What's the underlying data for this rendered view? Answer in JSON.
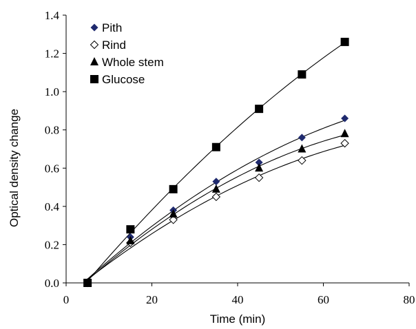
{
  "chart_data": {
    "type": "scatter",
    "xlabel": "Time (min)",
    "ylabel": "Optical density change",
    "xlim": [
      0,
      80
    ],
    "ylim": [
      0,
      1.4
    ],
    "x_ticks": [
      "0",
      "20",
      "40",
      "60",
      "80"
    ],
    "y_ticks": [
      "0.0",
      "0.2",
      "0.4",
      "0.6",
      "0.8",
      "1.0",
      "1.2",
      "1.4"
    ],
    "grid": false,
    "legend_position": "top-left",
    "trendline": "smooth curve fit through each series",
    "series": [
      {
        "name": "Pith",
        "marker": "diamond-filled",
        "color": "#1f2a6e",
        "x": [
          5,
          15,
          25,
          35,
          45,
          55,
          65
        ],
        "y": [
          0.0,
          0.24,
          0.38,
          0.53,
          0.63,
          0.76,
          0.86
        ]
      },
      {
        "name": "Rind",
        "marker": "diamond-open",
        "color": "#000000",
        "x": [
          5,
          15,
          25,
          35,
          45,
          55,
          65
        ],
        "y": [
          0.0,
          0.21,
          0.33,
          0.45,
          0.55,
          0.64,
          0.73
        ]
      },
      {
        "name": "Whole stem",
        "marker": "triangle",
        "color": "#000000",
        "x": [
          5,
          15,
          25,
          35,
          45,
          55,
          65
        ],
        "y": [
          0.0,
          0.22,
          0.36,
          0.49,
          0.6,
          0.7,
          0.78
        ]
      },
      {
        "name": "Glucose",
        "marker": "square",
        "color": "#000000",
        "x": [
          5,
          15,
          25,
          35,
          45,
          55,
          65
        ],
        "y": [
          0.0,
          0.28,
          0.49,
          0.71,
          0.91,
          1.09,
          1.26
        ]
      }
    ]
  }
}
